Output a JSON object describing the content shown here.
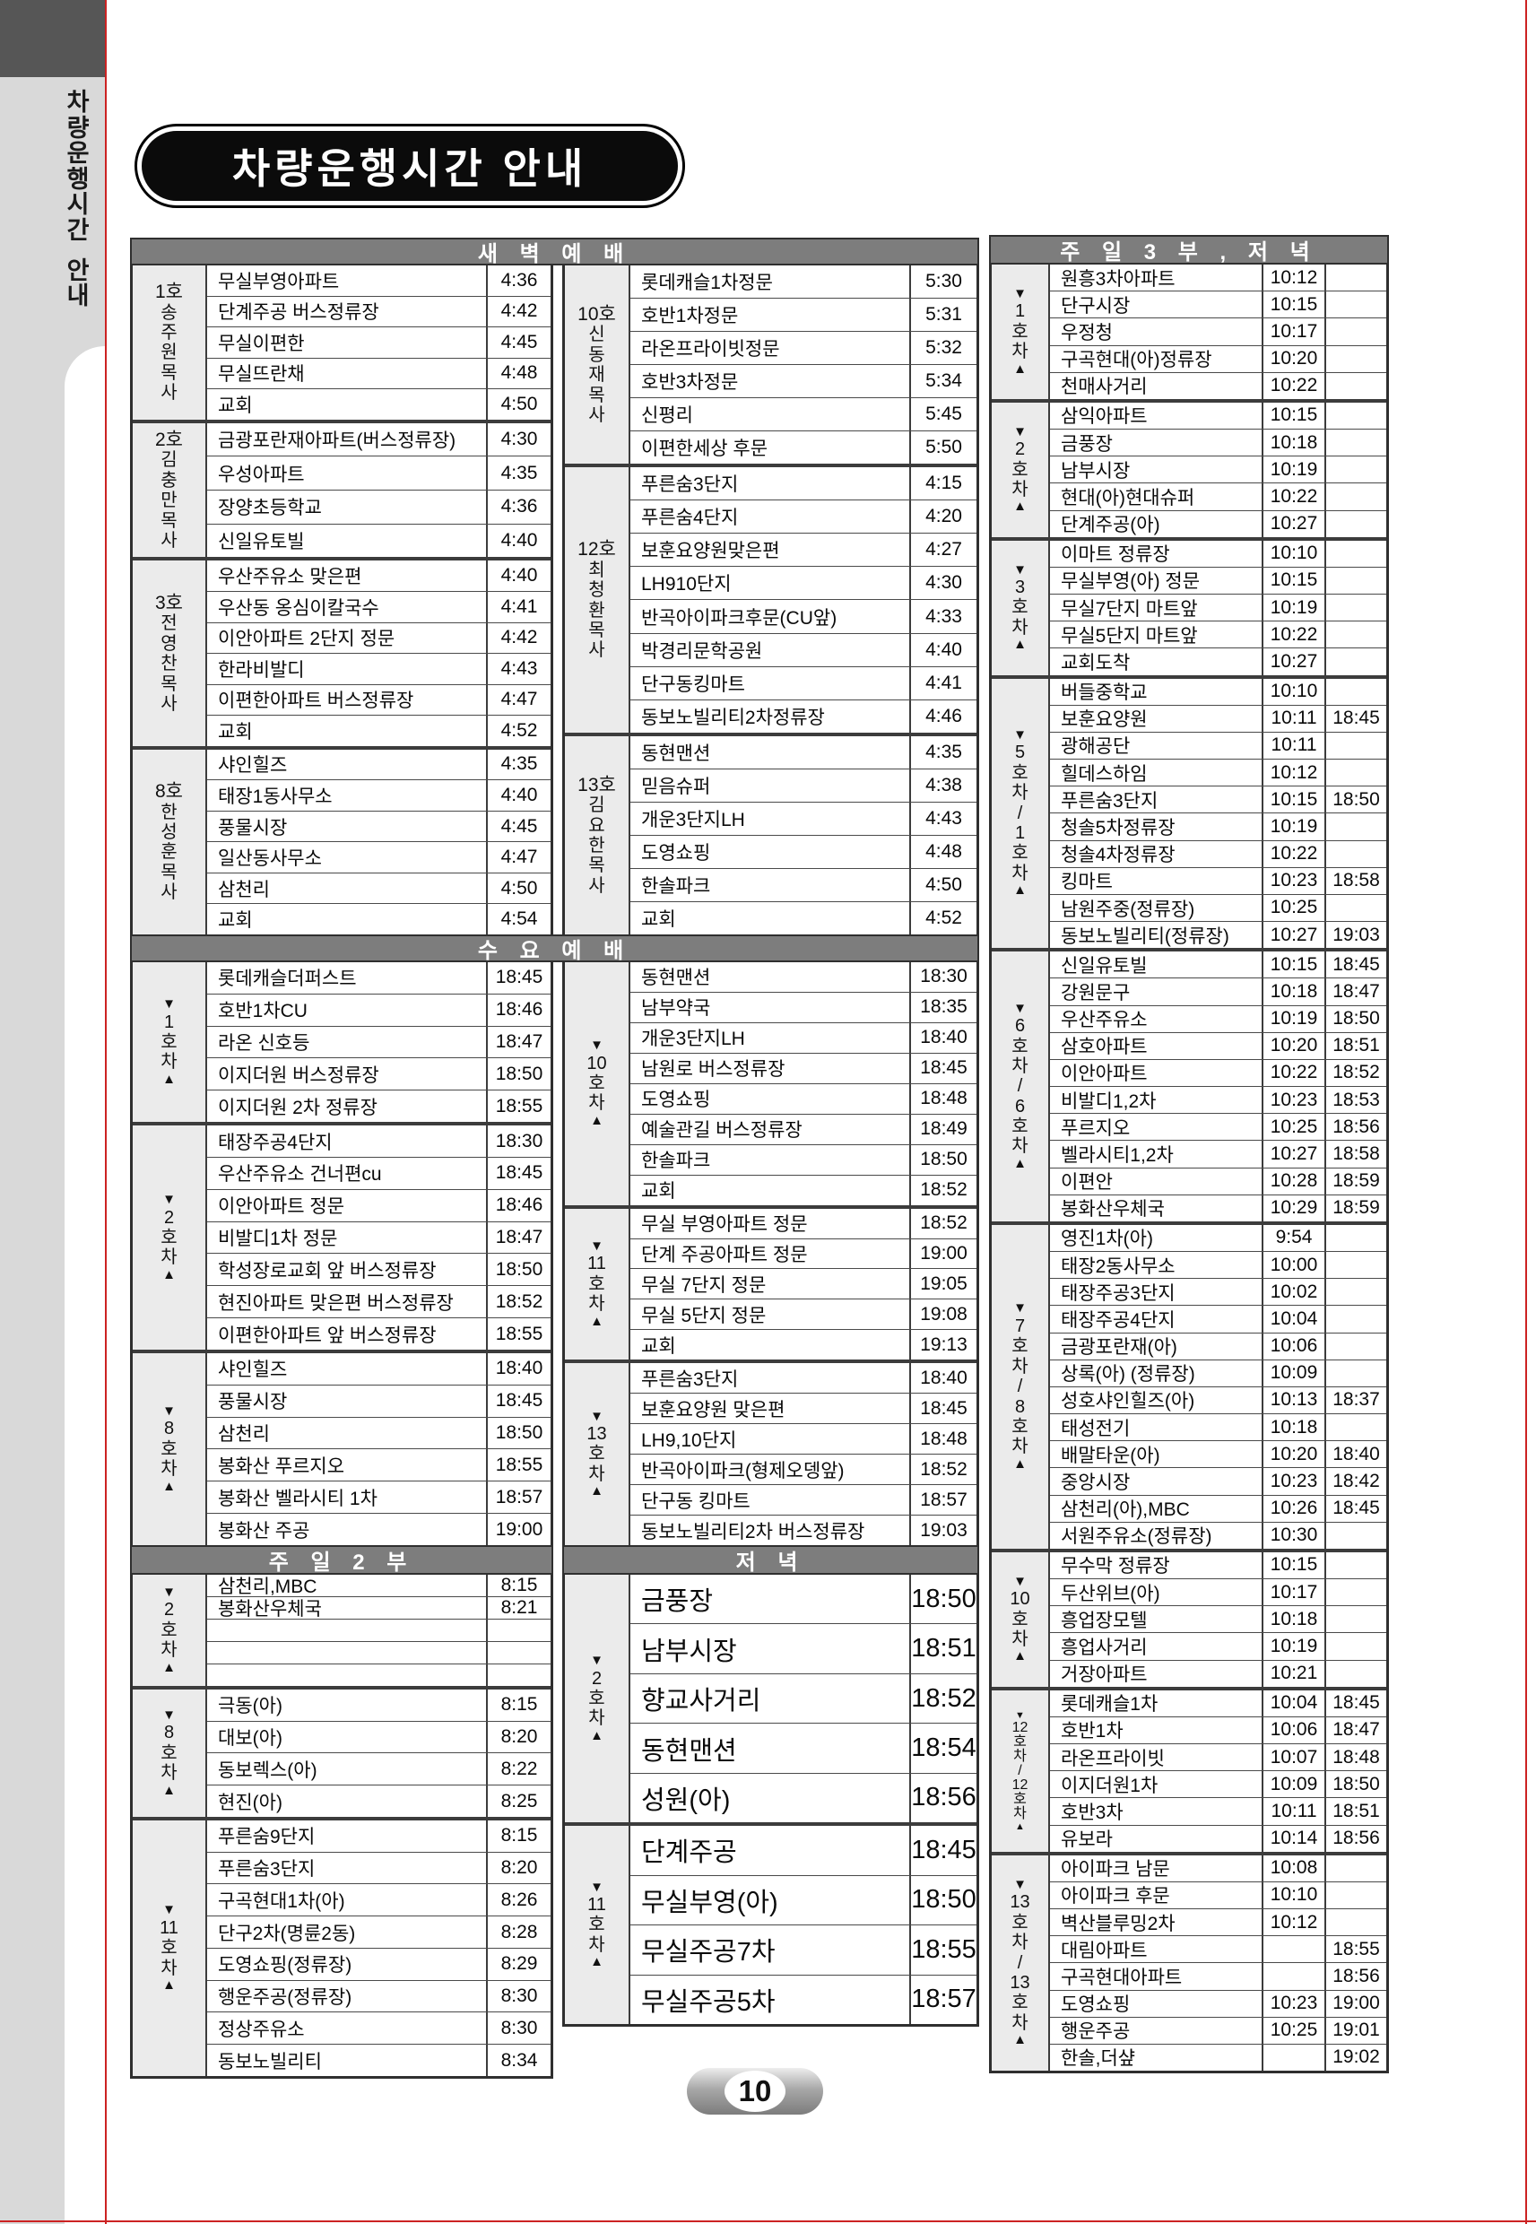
{
  "sidebar": {
    "vertical_title": "차량운행시간 안내"
  },
  "title": "차량운행시간 안내",
  "footer": {
    "page_number": "10"
  },
  "headers": {
    "dawn": "새 벽 예 배",
    "wednesday": "수 요 예 배",
    "sunday2": "주 일 2 부",
    "evening": "저 녁",
    "sunday3_evening": "주 일 3 부 , 저 녁"
  },
  "left_table": {
    "dawn": [
      {
        "bus": "1호",
        "pastor": "송주원목사",
        "stops": [
          [
            "무실부영아파트",
            "4:36"
          ],
          [
            "단계주공 버스정류장",
            "4:42"
          ],
          [
            "무실이편한",
            "4:45"
          ],
          [
            "무실뜨란채",
            "4:48"
          ],
          [
            "교회",
            "4:50"
          ]
        ]
      },
      {
        "bus": "2호",
        "pastor": "김충만목사",
        "stops": [
          [
            "금광포란재아파트(버스정류장)",
            "4:30"
          ],
          [
            "우성아파트",
            "4:35"
          ],
          [
            "장양초등학교",
            "4:36"
          ],
          [
            "신일유토빌",
            "4:40"
          ]
        ]
      },
      {
        "bus": "3호",
        "pastor": "전영찬목사",
        "stops": [
          [
            "우산주유소 맞은편",
            "4:40"
          ],
          [
            "우산동 옹심이칼국수",
            "4:41"
          ],
          [
            "이안아파트 2단지 정문",
            "4:42"
          ],
          [
            "한라비발디",
            "4:43"
          ],
          [
            "이편한아파트 버스정류장",
            "4:47"
          ],
          [
            "교회",
            "4:52"
          ]
        ]
      },
      {
        "bus": "8호",
        "pastor": "한성훈목사",
        "stops": [
          [
            "샤인힐즈",
            "4:35"
          ],
          [
            "태장1동사무소",
            "4:40"
          ],
          [
            "풍물시장",
            "4:45"
          ],
          [
            "일산동사무소",
            "4:47"
          ],
          [
            "삼천리",
            "4:50"
          ],
          [
            "교회",
            "4:54"
          ]
        ]
      }
    ],
    "wednesday": [
      {
        "car": "1호차",
        "stops": [
          [
            "롯데캐슬더퍼스트",
            "18:45"
          ],
          [
            "호반1차CU",
            "18:46"
          ],
          [
            "라온 신호등",
            "18:47"
          ],
          [
            "이지더원 버스정류장",
            "18:50"
          ],
          [
            "이지더원 2차 정류장",
            "18:55"
          ]
        ]
      },
      {
        "car": "2호차",
        "stops": [
          [
            "태장주공4단지",
            "18:30"
          ],
          [
            "우산주유소 건너편cu",
            "18:45"
          ],
          [
            "이안아파트 정문",
            "18:46"
          ],
          [
            "비발디1차 정문",
            "18:47"
          ],
          [
            "학성장로교회 앞 버스정류장",
            "18:50"
          ],
          [
            "현진아파트 맞은편 버스정류장",
            "18:52"
          ],
          [
            "이편한아파트 앞 버스정류장",
            "18:55"
          ]
        ]
      },
      {
        "car": "8호차",
        "stops": [
          [
            "샤인힐즈",
            "18:40"
          ],
          [
            "풍물시장",
            "18:45"
          ],
          [
            "삼천리",
            "18:50"
          ],
          [
            "봉화산 푸르지오",
            "18:55"
          ],
          [
            "봉화산 벨라시티 1차",
            "18:57"
          ],
          [
            "봉화산 주공",
            "19:00"
          ]
        ]
      }
    ],
    "sunday2": [
      {
        "car": "2호차",
        "stops": [
          [
            "삼천리,MBC",
            "8:15"
          ],
          [
            "봉화산우체국",
            "8:21"
          ],
          [
            "",
            ""
          ],
          [
            "",
            ""
          ],
          [
            "",
            ""
          ]
        ]
      },
      {
        "car": "8호차",
        "stops": [
          [
            "극동(아)",
            "8:15"
          ],
          [
            "대보(아)",
            "8:20"
          ],
          [
            "동보렉스(아)",
            "8:22"
          ],
          [
            "현진(아)",
            "8:25"
          ]
        ]
      },
      {
        "car": "11호차",
        "stops": [
          [
            "푸른숨9단지",
            "8:15"
          ],
          [
            "푸른숨3단지",
            "8:20"
          ],
          [
            "구곡현대1차(아)",
            "8:26"
          ],
          [
            "단구2차(명륜2동)",
            "8:28"
          ],
          [
            "도영쇼핑(정류장)",
            "8:29"
          ],
          [
            "행운주공(정류장)",
            "8:30"
          ],
          [
            "정상주유소",
            "8:30"
          ],
          [
            "동보노빌리티",
            "8:34"
          ]
        ]
      }
    ]
  },
  "middle_table": {
    "dawn": [
      {
        "bus": "10호",
        "pastor": "신동재목사",
        "stops": [
          [
            "롯데캐슬1차정문",
            "5:30"
          ],
          [
            "호반1차정문",
            "5:31"
          ],
          [
            "라온프라이빗정문",
            "5:32"
          ],
          [
            "호반3차정문",
            "5:34"
          ],
          [
            "신평리",
            "5:45"
          ],
          [
            "이편한세상 후문",
            "5:50"
          ]
        ]
      },
      {
        "bus": "12호",
        "pastor": "최청환목사",
        "stops": [
          [
            "푸른숨3단지",
            "4:15"
          ],
          [
            "푸른숨4단지",
            "4:20"
          ],
          [
            "보훈요양원맞은편",
            "4:27"
          ],
          [
            "LH910단지",
            "4:30"
          ],
          [
            "반곡아이파크후문(CU앞)",
            "4:33"
          ],
          [
            "박경리문학공원",
            "4:40"
          ],
          [
            "단구동킹마트",
            "4:41"
          ],
          [
            "동보노빌리티2차정류장",
            "4:46"
          ]
        ]
      },
      {
        "bus": "13호",
        "pastor": "김요한목사",
        "stops": [
          [
            "동현맨션",
            "4:35"
          ],
          [
            "믿음슈퍼",
            "4:38"
          ],
          [
            "개운3단지LH",
            "4:43"
          ],
          [
            "도영쇼핑",
            "4:48"
          ],
          [
            "한솔파크",
            "4:50"
          ],
          [
            "교회",
            "4:52"
          ]
        ]
      }
    ],
    "wednesday": [
      {
        "car": "10호차",
        "stops": [
          [
            "동현맨션",
            "18:30"
          ],
          [
            "남부약국",
            "18:35"
          ],
          [
            "개운3단지LH",
            "18:40"
          ],
          [
            "남원로 버스정류장",
            "18:45"
          ],
          [
            "도영쇼핑",
            "18:48"
          ],
          [
            "예술관길 버스정류장",
            "18:49"
          ],
          [
            "한솔파크",
            "18:50"
          ],
          [
            "교회",
            "18:52"
          ]
        ]
      },
      {
        "car": "11호차",
        "stops": [
          [
            "무실 부영아파트 정문",
            "18:52"
          ],
          [
            "단계 주공아파트 정문",
            "19:00"
          ],
          [
            "무실 7단지 정문",
            "19:05"
          ],
          [
            "무실 5단지 정문",
            "19:08"
          ],
          [
            "교회",
            "19:13"
          ]
        ]
      },
      {
        "car": "13호차",
        "stops": [
          [
            "푸른숨3단지",
            "18:40"
          ],
          [
            "보훈요양원 맞은편",
            "18:45"
          ],
          [
            "LH9,10단지",
            "18:48"
          ],
          [
            "반곡아이파크(형제오뎅앞)",
            "18:52"
          ],
          [
            "단구동 킹마트",
            "18:57"
          ],
          [
            "동보노빌리티2차 버스정류장",
            "19:03"
          ]
        ]
      }
    ],
    "evening": [
      {
        "car": "2호차",
        "stops": [
          [
            "금풍장",
            "18:50"
          ],
          [
            "남부시장",
            "18:51"
          ],
          [
            "향교사거리",
            "18:52"
          ],
          [
            "동현맨션",
            "18:54"
          ],
          [
            "성원(아)",
            "18:56"
          ]
        ]
      },
      {
        "car": "11호차",
        "stops": [
          [
            "단계주공",
            "18:45"
          ],
          [
            "무실부영(아)",
            "18:50"
          ],
          [
            "무실주공7차",
            "18:55"
          ],
          [
            "무실주공5차",
            "18:57"
          ]
        ]
      }
    ]
  },
  "right_table": {
    "groups": [
      {
        "car": "1호차",
        "stops": [
          [
            "원흥3차아파트",
            "10:12",
            ""
          ],
          [
            "단구시장",
            "10:15",
            ""
          ],
          [
            "우정청",
            "10:17",
            ""
          ],
          [
            "구곡현대(아)정류장",
            "10:20",
            ""
          ],
          [
            "천매사거리",
            "10:22",
            ""
          ]
        ]
      },
      {
        "car": "2호차",
        "stops": [
          [
            "삼익아파트",
            "10:15",
            ""
          ],
          [
            "금풍장",
            "10:18",
            ""
          ],
          [
            "남부시장",
            "10:19",
            ""
          ],
          [
            "현대(아)현대슈퍼",
            "10:22",
            ""
          ],
          [
            "단계주공(아)",
            "10:27",
            ""
          ]
        ]
      },
      {
        "car": "3호차",
        "stops": [
          [
            "이마트 정류장",
            "10:10",
            ""
          ],
          [
            "무실부영(아) 정문",
            "10:15",
            ""
          ],
          [
            "무실7단지 마트앞",
            "10:19",
            ""
          ],
          [
            "무실5단지 마트앞",
            "10:22",
            ""
          ],
          [
            "교회도착",
            "10:27",
            ""
          ]
        ]
      },
      {
        "car": "5호차/1호차",
        "stops": [
          [
            "버들중학교",
            "10:10",
            ""
          ],
          [
            "보훈요양원",
            "10:11",
            "18:45"
          ],
          [
            "광해공단",
            "10:11",
            ""
          ],
          [
            "힐데스하임",
            "10:12",
            ""
          ],
          [
            "푸른숨3단지",
            "10:15",
            "18:50"
          ],
          [
            "청솔5차정류장",
            "10:19",
            ""
          ],
          [
            "청솔4차정류장",
            "10:22",
            ""
          ],
          [
            "킹마트",
            "10:23",
            "18:58"
          ],
          [
            "남원주중(정류장)",
            "10:25",
            ""
          ],
          [
            "동보노빌리티(정류장)",
            "10:27",
            "19:03"
          ]
        ]
      },
      {
        "car": "6호차/6호차",
        "stops": [
          [
            "신일유토빌",
            "10:15",
            "18:45"
          ],
          [
            "강원문구",
            "10:18",
            "18:47"
          ],
          [
            "우산주유소",
            "10:19",
            "18:50"
          ],
          [
            "삼호아파트",
            "10:20",
            "18:51"
          ],
          [
            "이안아파트",
            "10:22",
            "18:52"
          ],
          [
            "비발디1,2차",
            "10:23",
            "18:53"
          ],
          [
            "푸르지오",
            "10:25",
            "18:56"
          ],
          [
            "벨라시티1,2차",
            "10:27",
            "18:58"
          ],
          [
            "이편안",
            "10:28",
            "18:59"
          ],
          [
            "봉화산우체국",
            "10:29",
            "18:59"
          ]
        ]
      },
      {
        "car": "7호차/8호차",
        "stops": [
          [
            "영진1차(아)",
            "9:54",
            ""
          ],
          [
            "태장2동사무소",
            "10:00",
            ""
          ],
          [
            "태장주공3단지",
            "10:02",
            ""
          ],
          [
            "태장주공4단지",
            "10:04",
            ""
          ],
          [
            "금광포란재(아)",
            "10:06",
            ""
          ],
          [
            "상록(아) (정류장)",
            "10:09",
            ""
          ],
          [
            "성호샤인힐즈(아)",
            "10:13",
            "18:37"
          ],
          [
            "태성전기",
            "10:18",
            ""
          ],
          [
            "배말타운(아)",
            "10:20",
            "18:40"
          ],
          [
            "중앙시장",
            "10:23",
            "18:42"
          ],
          [
            "삼천리(아),MBC",
            "10:26",
            "18:45"
          ],
          [
            "서원주유소(정류장)",
            "10:30",
            ""
          ]
        ]
      },
      {
        "car": "10호차",
        "stops": [
          [
            "무수막 정류장",
            "10:15",
            ""
          ],
          [
            "두산위브(아)",
            "10:17",
            ""
          ],
          [
            "흥업장모텔",
            "10:18",
            ""
          ],
          [
            "흥업사거리",
            "10:19",
            ""
          ],
          [
            "거장아파트",
            "10:21",
            ""
          ]
        ]
      },
      {
        "car": "12호차/12호차",
        "stops": [
          [
            "롯데캐슬1차",
            "10:04",
            "18:45"
          ],
          [
            "호반1차",
            "10:06",
            "18:47"
          ],
          [
            "라온프라이빗",
            "10:07",
            "18:48"
          ],
          [
            "이지더원1차",
            "10:09",
            "18:50"
          ],
          [
            "호반3차",
            "10:11",
            "18:51"
          ],
          [
            "유보라",
            "10:14",
            "18:56"
          ]
        ]
      },
      {
        "car": "13호차/13호차",
        "stops": [
          [
            "아이파크 남문",
            "10:08",
            ""
          ],
          [
            "아이파크 후문",
            "10:10",
            ""
          ],
          [
            "벽산블루밍2차",
            "10:12",
            ""
          ],
          [
            "대림아파트",
            "",
            "18:55"
          ],
          [
            "구곡현대아파트",
            "",
            "18:56"
          ],
          [
            "도영쇼핑",
            "10:23",
            "19:00"
          ],
          [
            "행운주공",
            "10:25",
            "19:01"
          ],
          [
            "한솔,더샾",
            "",
            "19:02"
          ]
        ]
      }
    ]
  }
}
